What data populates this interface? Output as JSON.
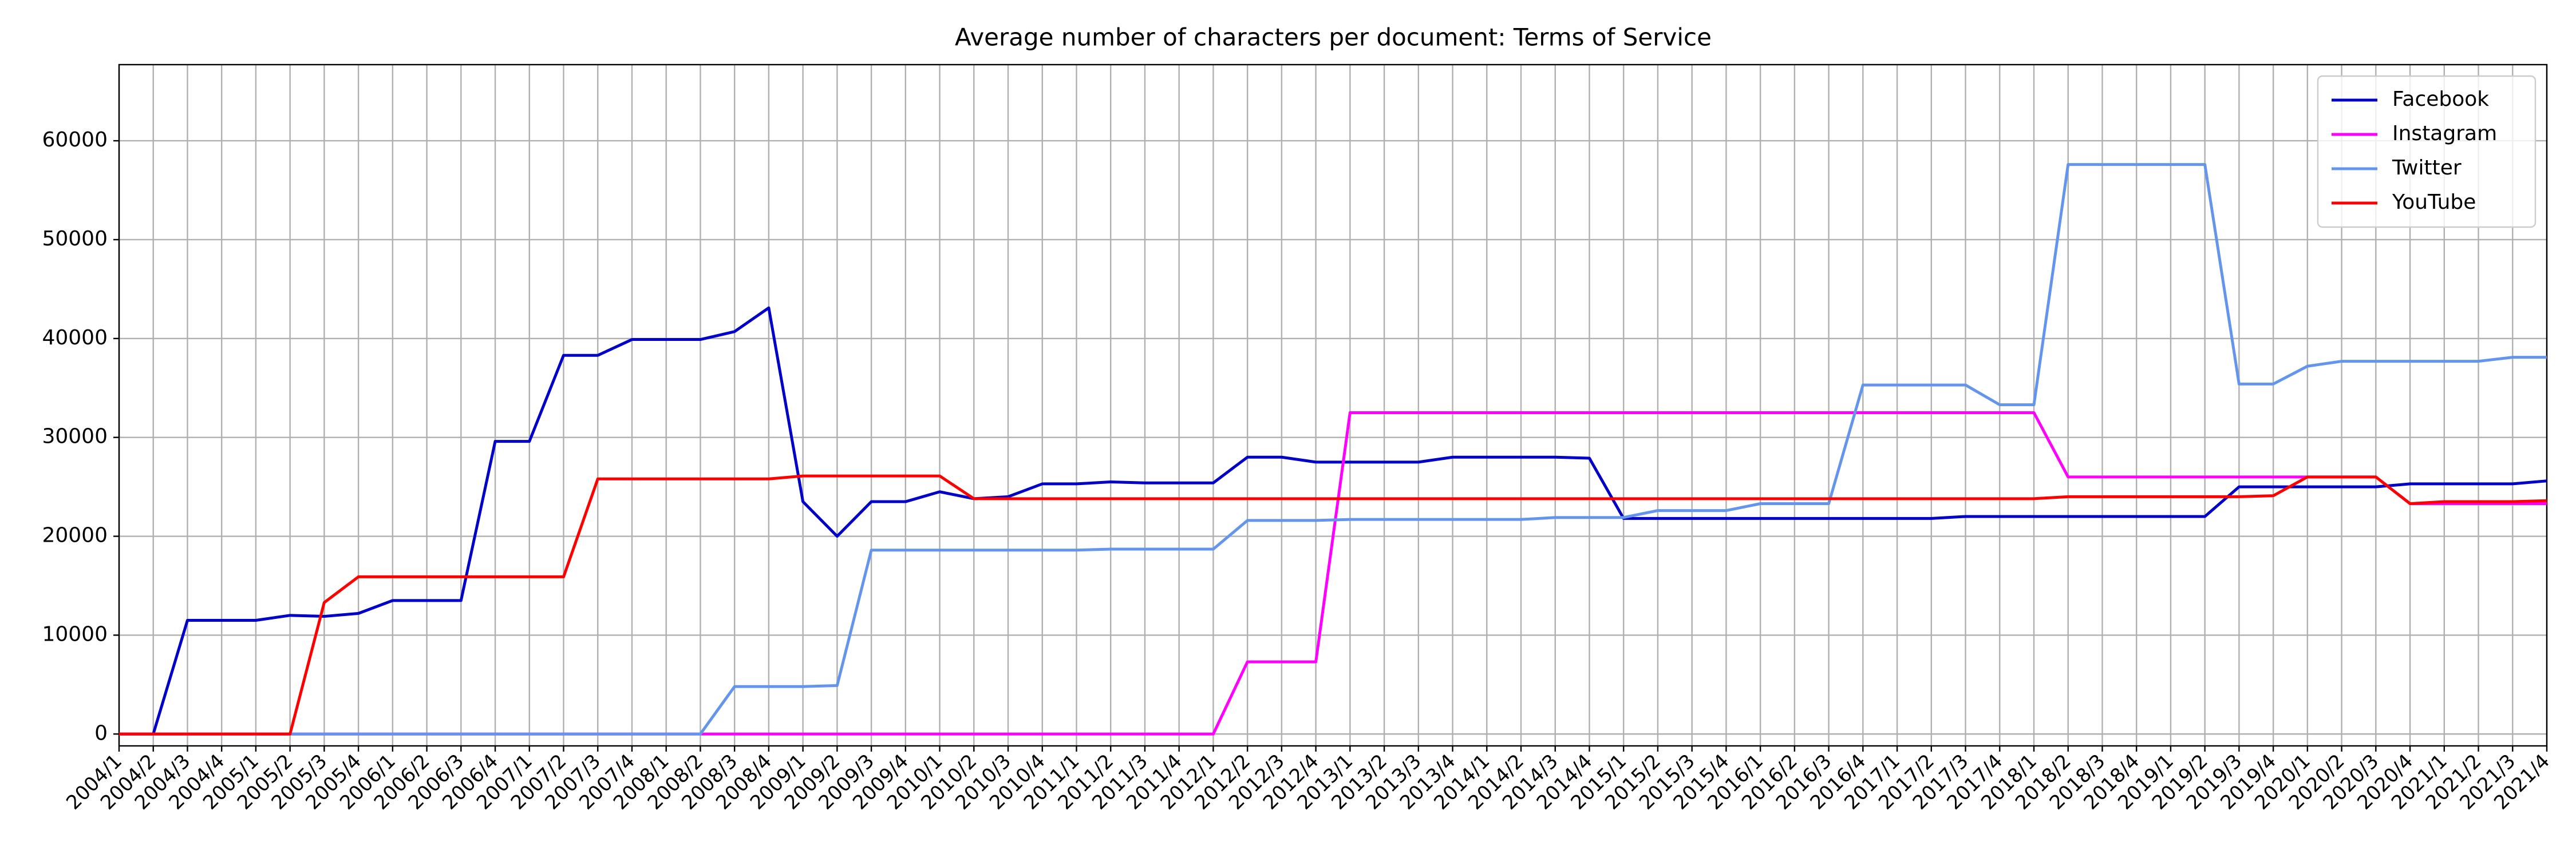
{
  "chart_data": {
    "type": "line",
    "title": "Average number of characters per document: Terms of Service",
    "categories": [
      "2004/1",
      "2004/2",
      "2004/3",
      "2004/4",
      "2005/1",
      "2005/2",
      "2005/3",
      "2005/4",
      "2006/1",
      "2006/2",
      "2006/3",
      "2006/4",
      "2007/1",
      "2007/2",
      "2007/3",
      "2007/4",
      "2008/1",
      "2008/2",
      "2008/3",
      "2008/4",
      "2009/1",
      "2009/2",
      "2009/3",
      "2009/4",
      "2010/1",
      "2010/2",
      "2010/3",
      "2010/4",
      "2011/1",
      "2011/2",
      "2011/3",
      "2011/4",
      "2012/1",
      "2012/2",
      "2012/3",
      "2012/4",
      "2013/1",
      "2013/2",
      "2013/3",
      "2013/4",
      "2014/1",
      "2014/2",
      "2014/3",
      "2014/4",
      "2015/1",
      "2015/2",
      "2015/3",
      "2015/4",
      "2016/1",
      "2016/2",
      "2016/3",
      "2016/4",
      "2017/1",
      "2017/2",
      "2017/3",
      "2017/4",
      "2018/1",
      "2018/2",
      "2018/3",
      "2018/4",
      "2019/1",
      "2019/2",
      "2019/3",
      "2019/4",
      "2020/1",
      "2020/2",
      "2020/3",
      "2020/4",
      "2021/1",
      "2021/2",
      "2021/3",
      "2021/4"
    ],
    "series": [
      {
        "name": "Facebook",
        "color": "#0000c8",
        "values": [
          0,
          0,
          11500,
          11500,
          11500,
          12000,
          11900,
          12200,
          13500,
          13500,
          13500,
          29600,
          29600,
          38300,
          38300,
          39900,
          39900,
          39900,
          40700,
          43100,
          23500,
          20000,
          23500,
          23500,
          24500,
          23800,
          24000,
          25300,
          25300,
          25500,
          25400,
          25400,
          25400,
          28000,
          28000,
          27500,
          27500,
          27500,
          27500,
          28000,
          28000,
          28000,
          28000,
          27900,
          21800,
          21800,
          21800,
          21800,
          21800,
          21800,
          21800,
          21800,
          21800,
          21800,
          22000,
          22000,
          22000,
          22000,
          22000,
          22000,
          22000,
          22000,
          25000,
          25000,
          25000,
          25000,
          25000,
          25300,
          25300,
          25300,
          25300,
          25600
        ]
      },
      {
        "name": "Instagram",
        "color": "#ff00ff",
        "values": [
          0,
          0,
          0,
          0,
          0,
          0,
          0,
          0,
          0,
          0,
          0,
          0,
          0,
          0,
          0,
          0,
          0,
          0,
          0,
          0,
          0,
          0,
          0,
          0,
          0,
          0,
          0,
          0,
          0,
          0,
          0,
          0,
          0,
          7300,
          7300,
          7300,
          32500,
          32500,
          32500,
          32500,
          32500,
          32500,
          32500,
          32500,
          32500,
          32500,
          32500,
          32500,
          32500,
          32500,
          32500,
          32500,
          32500,
          32500,
          32500,
          32500,
          32500,
          26000,
          26000,
          26000,
          26000,
          26000,
          26000,
          26000,
          26000,
          26000,
          26000,
          23300,
          23300,
          23300,
          23300,
          23300
        ]
      },
      {
        "name": "Twitter",
        "color": "#6495ed",
        "values": [
          0,
          0,
          0,
          0,
          0,
          0,
          0,
          0,
          0,
          0,
          0,
          0,
          0,
          0,
          0,
          0,
          0,
          0,
          4800,
          4800,
          4800,
          4900,
          18600,
          18600,
          18600,
          18600,
          18600,
          18600,
          18600,
          18700,
          18700,
          18700,
          18700,
          21600,
          21600,
          21600,
          21700,
          21700,
          21700,
          21700,
          21700,
          21700,
          21900,
          21900,
          21900,
          22600,
          22600,
          22600,
          23300,
          23300,
          23300,
          35300,
          35300,
          35300,
          35300,
          33300,
          33300,
          57600,
          57600,
          57600,
          57600,
          57600,
          35400,
          35400,
          37200,
          37700,
          37700,
          37700,
          37700,
          37700,
          38100,
          38100
        ]
      },
      {
        "name": "YouTube",
        "color": "#ff0000",
        "values": [
          0,
          0,
          0,
          0,
          0,
          0,
          13300,
          15900,
          15900,
          15900,
          15900,
          15900,
          15900,
          15900,
          25800,
          25800,
          25800,
          25800,
          25800,
          25800,
          26100,
          26100,
          26100,
          26100,
          26100,
          23800,
          23800,
          23800,
          23800,
          23800,
          23800,
          23800,
          23800,
          23800,
          23800,
          23800,
          23800,
          23800,
          23800,
          23800,
          23800,
          23800,
          23800,
          23800,
          23800,
          23800,
          23800,
          23800,
          23800,
          23800,
          23800,
          23800,
          23800,
          23800,
          23800,
          23800,
          23800,
          24000,
          24000,
          24000,
          24000,
          24000,
          24000,
          24100,
          26000,
          26000,
          26000,
          23300,
          23500,
          23500,
          23500,
          23600
        ]
      }
    ],
    "ylim": [
      -1200,
      67700
    ],
    "yticks": [
      0,
      10000,
      20000,
      30000,
      40000,
      50000,
      60000
    ],
    "grid": true,
    "legend": "upper right"
  }
}
